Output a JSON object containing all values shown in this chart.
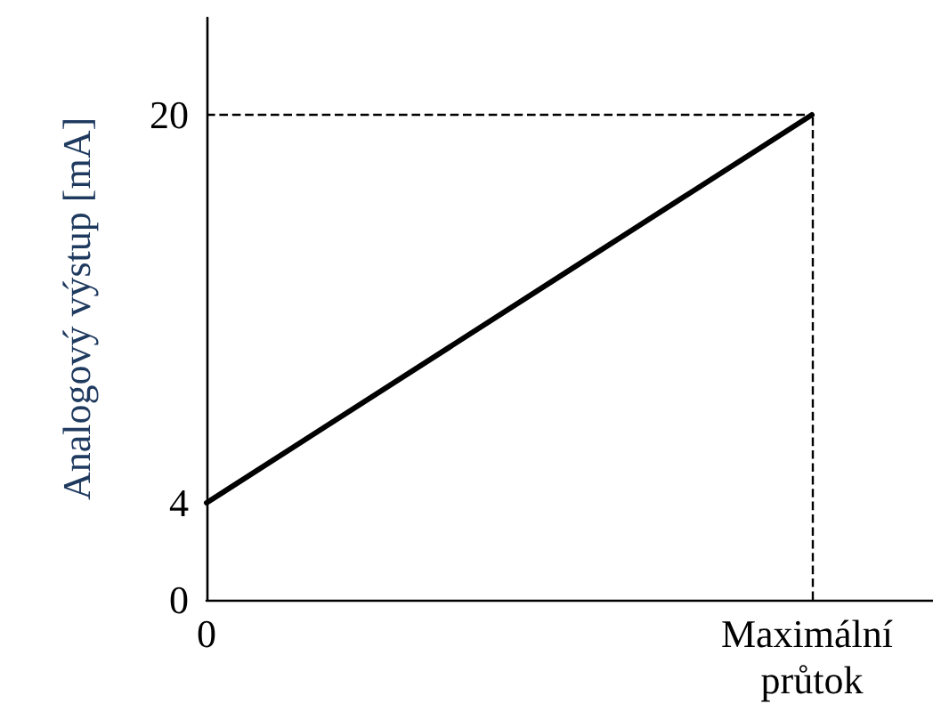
{
  "chart_data": {
    "type": "line",
    "ylabel": "Analogový výstup [mA]",
    "categories": [
      "0",
      null,
      null,
      null,
      null,
      "Maximální průtok",
      null
    ],
    "series": [
      {
        "color": "#000000",
        "values": [
          4,
          7.2,
          10.4,
          13.6,
          16.8,
          20,
          null
        ]
      }
    ],
    "ylim": [
      0,
      24
    ],
    "yticks": [
      0,
      4,
      20
    ],
    "ref_lines": [
      {
        "axis": "y",
        "value": 20,
        "color": "#000000",
        "line_style": "dashed"
      },
      {
        "axis": "x",
        "value": "Maximální průtok",
        "color": "#000000",
        "line_style": "dashed"
      }
    ],
    "grid": false,
    "marker": "none",
    "line_style": "solid"
  }
}
